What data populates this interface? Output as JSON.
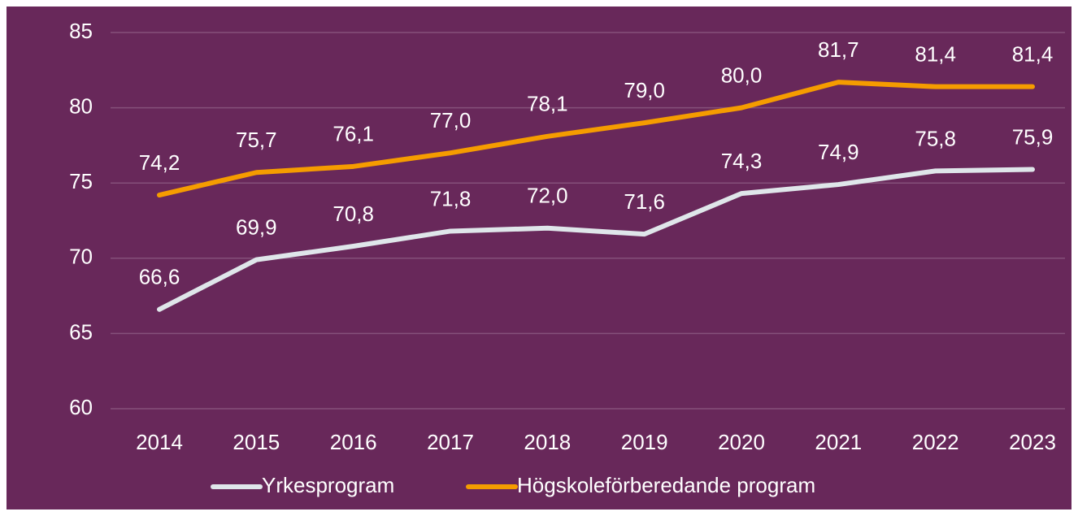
{
  "chart_data": {
    "type": "line",
    "categories": [
      "2014",
      "2015",
      "2016",
      "2017",
      "2018",
      "2019",
      "2020",
      "2021",
      "2022",
      "2023"
    ],
    "series": [
      {
        "name": "Yrkesprogram",
        "color": "#dfe6ea",
        "values": [
          66.6,
          69.9,
          70.8,
          71.8,
          72.0,
          71.6,
          74.3,
          74.9,
          75.8,
          75.9
        ],
        "value_labels": [
          "66,6",
          "69,9",
          "70,8",
          "71,8",
          "72,0",
          "71,6",
          "74,3",
          "74,9",
          "75,8",
          "75,9"
        ]
      },
      {
        "name": "Högskoleförberedande program",
        "color": "#f59c00",
        "values": [
          74.2,
          75.7,
          76.1,
          77.0,
          78.1,
          79.0,
          80.0,
          81.7,
          81.4,
          81.4
        ],
        "value_labels": [
          "74,2",
          "75,7",
          "76,1",
          "77,0",
          "78,1",
          "79,0",
          "80,0",
          "81,7",
          "81,4",
          "81,4"
        ]
      }
    ],
    "ylim": [
      60,
      85
    ],
    "yticks": [
      60,
      65,
      70,
      75,
      80,
      85
    ],
    "grid": true,
    "legend": "bottom"
  }
}
